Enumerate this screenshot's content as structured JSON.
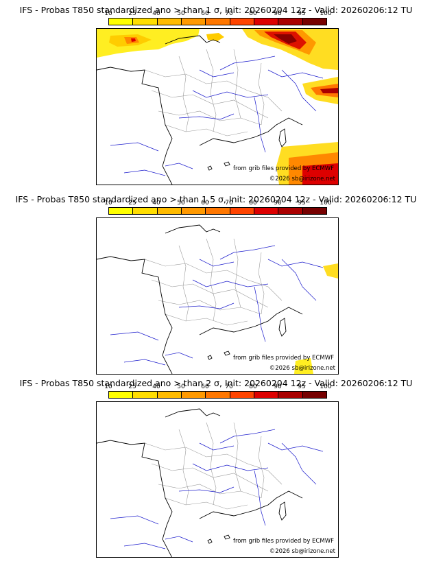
{
  "panels": [
    {
      "title": "IFS - Probas T850  standardized ano > than 1 σ, Init: 20260204 12z - Valid: 20260206:12 TU",
      "credit_source": "from grib files provided by ECMWF",
      "credit_copyright": "©2026 sb@irizone.net"
    },
    {
      "title": "IFS - Probas T850  standardized ano > than 1.5 σ, Init: 20260204 12z - Valid: 20260206:12 TU",
      "credit_source": "from grib files provided by ECMWF",
      "credit_copyright": "©2026 sb@irizone.net"
    },
    {
      "title": "IFS - Probas T850  standardized ano > than 2 σ, Init: 20260204 12z - Valid: 20260206:12 TU",
      "credit_source": "from grib files provided by ECMWF",
      "credit_copyright": "©2026 sb@irizone.net"
    }
  ],
  "colorbar": {
    "labels": [
      "10",
      "25",
      "40",
      "50",
      "60",
      "70",
      "80",
      "90",
      "95",
      "100"
    ],
    "colors": [
      "#ffff00",
      "#ffdd00",
      "#ffbb00",
      "#ff9900",
      "#ff7700",
      "#ff4400",
      "#dd0000",
      "#aa0000",
      "#770000"
    ]
  },
  "map_colors": {
    "coast": "#000000",
    "rivers": "#0000cc",
    "borders": "#999999"
  }
}
